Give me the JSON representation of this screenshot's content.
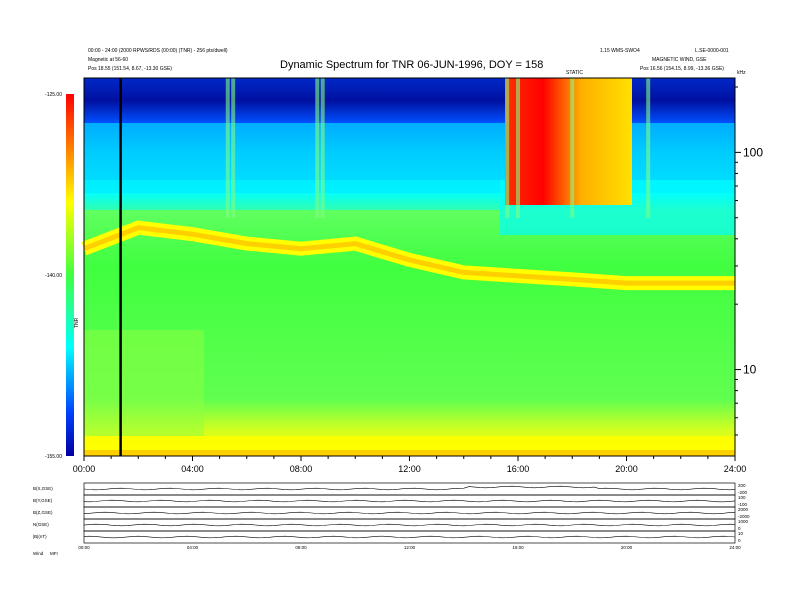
{
  "header": {
    "left_line1": "00:00 - 24:00 (2000 RPWS/RDS (00:00) (TNR) - 256 pts/dwell)",
    "left_line2": "Magnetic at 56-60",
    "left_line3": "Pos    18.55 (151.54, 8.67, -13.30 GSE)",
    "right_line1": "1.15 WMS-SWO4",
    "right_line2": "MAGNETIC WIND, GSE",
    "right_line3": "Pos    16.56 (154.15, 8.99, -13.36 GSE)",
    "right_small": "L.SE-0000-001",
    "center_small": "STATIC",
    "right_corner": "kHz"
  },
  "chart_data": {
    "type": "heatmap",
    "title": "Dynamic Spectrum for TNR 06-JUN-1996, DOY = 158",
    "x_ticks": [
      "00:00",
      "04:00",
      "08:00",
      "12:00",
      "16:00",
      "20:00",
      "24:00"
    ],
    "xlim_hours": [
      0,
      24
    ],
    "y_scale": "log",
    "y_ticks": [
      "100",
      "10"
    ],
    "y_tick_values": [
      100,
      10
    ],
    "ylim_khz": [
      4,
      220
    ],
    "colorbar": {
      "label": "TNR",
      "ticks": [
        "-125.00",
        "-140.00",
        "-155.00"
      ],
      "tick_values": [
        -125,
        -140,
        -155
      ],
      "range": [
        -155,
        -125
      ],
      "colors": [
        "#0000a0",
        "#0040ff",
        "#00ffff",
        "#40ff40",
        "#ffff00",
        "#ff8000",
        "#ff0000"
      ]
    },
    "marker_line_hours": 1.35,
    "bands": [
      {
        "name": "background",
        "value": -143
      },
      {
        "name": "plasma-line",
        "x": [
          0,
          2,
          4,
          6,
          8,
          10,
          12,
          14,
          16,
          18,
          20,
          22,
          24
        ],
        "y_khz": [
          36,
          45,
          42,
          38,
          36,
          38,
          32,
          28,
          27,
          26,
          25,
          25,
          25
        ]
      }
    ],
    "panels": [
      {
        "label": "B(X,GSE)",
        "right_ticks": [
          "200",
          "-200"
        ]
      },
      {
        "label": "B(Y,GSE)",
        "right_ticks": [
          "100",
          "-100"
        ]
      },
      {
        "label": "B(Z,GSE)",
        "right_ticks": [
          "2000",
          "-2000"
        ]
      },
      {
        "label": "N(GSE)",
        "right_ticks": [
          "1000",
          "0"
        ]
      },
      {
        "label": "|B|(nT)",
        "right_ticks": [
          "10",
          "0"
        ]
      }
    ],
    "bottom_ticks": [
      "00:00",
      "04:00",
      "08:00",
      "12:00",
      "16:00",
      "20:00",
      "24:00"
    ],
    "bottom_label": "Wind",
    "bottom_label2": "MFI"
  }
}
